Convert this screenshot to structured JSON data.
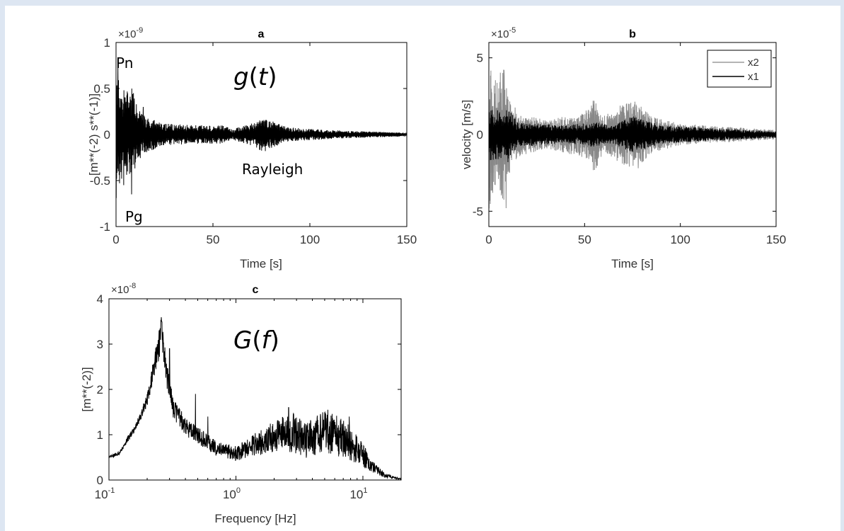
{
  "chart_data": [
    {
      "panel": "a",
      "type": "line",
      "title": "a",
      "xlabel": "Time [s]",
      "ylabel": "[m**(-2) s**(-1)]",
      "xlim": [
        0,
        150
      ],
      "ylim": [
        -1,
        1
      ],
      "multiplier": "×10",
      "multiplier_exp": "-9",
      "xticks": [
        0,
        50,
        100,
        150
      ],
      "xtick_labels": [
        "0",
        "50",
        "100",
        "150"
      ],
      "yticks": [
        -1,
        -0.5,
        0,
        0.5,
        1
      ],
      "ytick_labels": [
        "-1",
        "-0.5",
        "0",
        "0.5",
        "1"
      ],
      "grid": false,
      "line_color": "#000000",
      "annotations": {
        "pn": "Pn",
        "pg": "Pg",
        "rayleigh": "Rayleigh",
        "func": "g",
        "func_var": "t"
      },
      "envelope": [
        [
          0,
          0.75
        ],
        [
          2,
          0.55
        ],
        [
          5,
          0.45
        ],
        [
          8,
          0.55
        ],
        [
          10,
          0.35
        ],
        [
          15,
          0.2
        ],
        [
          25,
          0.12
        ],
        [
          40,
          0.1
        ],
        [
          55,
          0.1
        ],
        [
          60,
          0.06
        ],
        [
          70,
          0.12
        ],
        [
          75,
          0.18
        ],
        [
          80,
          0.15
        ],
        [
          88,
          0.08
        ],
        [
          100,
          0.06
        ],
        [
          120,
          0.04
        ],
        [
          150,
          0.02
        ]
      ],
      "peaks": [
        [
          1,
          0.75
        ],
        [
          4,
          -0.55
        ],
        [
          8,
          -0.65
        ],
        [
          9,
          0.45
        ],
        [
          14,
          0.3
        ],
        [
          77,
          -0.18
        ],
        [
          79,
          0.14
        ]
      ]
    },
    {
      "panel": "b",
      "type": "line",
      "title": "b",
      "xlabel": "Time [s]",
      "ylabel": "velocity [m/s]",
      "xlim": [
        0,
        150
      ],
      "ylim": [
        -6,
        6
      ],
      "multiplier": "×10",
      "multiplier_exp": "-5",
      "xticks": [
        0,
        50,
        100,
        150
      ],
      "xtick_labels": [
        "0",
        "50",
        "100",
        "150"
      ],
      "yticks": [
        -5,
        0,
        5
      ],
      "ytick_labels": [
        "-5",
        "0",
        "5"
      ],
      "grid": false,
      "legend_position": "top-right",
      "series": [
        {
          "name": "x2",
          "color": "#888888",
          "envelope": [
            [
              0,
              5
            ],
            [
              3,
              3.5
            ],
            [
              8,
              4.5
            ],
            [
              10,
              3
            ],
            [
              15,
              1.5
            ],
            [
              30,
              0.9
            ],
            [
              50,
              1.5
            ],
            [
              55,
              2.5
            ],
            [
              60,
              1.2
            ],
            [
              70,
              2
            ],
            [
              77,
              2.2
            ],
            [
              85,
              1.2
            ],
            [
              100,
              0.7
            ],
            [
              150,
              0.3
            ]
          ],
          "peaks": [
            [
              9,
              -4.8
            ],
            [
              8,
              3.8
            ],
            [
              2,
              -3.8
            ],
            [
              55,
              2.2
            ],
            [
              73,
              2.0
            ],
            [
              78,
              -2.2
            ]
          ]
        },
        {
          "name": "x1",
          "color": "#000000",
          "envelope": [
            [
              0,
              1.8
            ],
            [
              5,
              1.6
            ],
            [
              10,
              1.8
            ],
            [
              15,
              0.8
            ],
            [
              40,
              0.6
            ],
            [
              55,
              0.8
            ],
            [
              65,
              0.6
            ],
            [
              75,
              1.2
            ],
            [
              80,
              1.0
            ],
            [
              90,
              0.6
            ],
            [
              150,
              0.2
            ]
          ],
          "peaks": [
            [
              10,
              -1.8
            ],
            [
              75,
              -0.9
            ]
          ]
        }
      ]
    },
    {
      "panel": "c",
      "type": "line",
      "title": "c",
      "xlabel": "Frequency [Hz]",
      "ylabel": "[m**(-2)]",
      "xscale": "log",
      "xlim": [
        0.1,
        20
      ],
      "ylim": [
        0,
        4
      ],
      "multiplier": "×10",
      "multiplier_exp": "-8",
      "xticks": [
        0.1,
        1,
        10
      ],
      "xtick_bases": [
        "10",
        "10",
        "10"
      ],
      "xtick_exps": [
        "-1",
        "0",
        "1"
      ],
      "yticks": [
        0,
        1,
        2,
        3,
        4
      ],
      "ytick_labels": [
        "0",
        "1",
        "2",
        "3",
        "4"
      ],
      "grid": false,
      "line_color": "#000000",
      "annotations": {
        "func": "G",
        "func_var": "f"
      },
      "spectrum": [
        [
          0.1,
          0.5
        ],
        [
          0.12,
          0.6
        ],
        [
          0.14,
          0.9
        ],
        [
          0.17,
          1.3
        ],
        [
          0.2,
          1.8
        ],
        [
          0.23,
          2.6
        ],
        [
          0.26,
          3.3
        ],
        [
          0.28,
          2.5
        ],
        [
          0.32,
          1.6
        ],
        [
          0.4,
          1.2
        ],
        [
          0.5,
          1.0
        ],
        [
          0.7,
          0.7
        ],
        [
          1.0,
          0.6
        ],
        [
          1.4,
          0.8
        ],
        [
          2.0,
          1.0
        ],
        [
          2.8,
          1.1
        ],
        [
          3.5,
          0.9
        ],
        [
          5.0,
          1.1
        ],
        [
          7.0,
          1.0
        ],
        [
          9.0,
          0.7
        ],
        [
          12,
          0.3
        ],
        [
          15,
          0.1
        ],
        [
          20,
          0.02
        ]
      ],
      "peaks": [
        [
          0.26,
          3.5
        ],
        [
          0.24,
          3.0
        ],
        [
          0.3,
          2.9
        ],
        [
          0.48,
          1.9
        ],
        [
          0.6,
          1.4
        ],
        [
          2.6,
          1.6
        ],
        [
          5.3,
          1.55
        ],
        [
          7.8,
          1.4
        ]
      ]
    }
  ]
}
